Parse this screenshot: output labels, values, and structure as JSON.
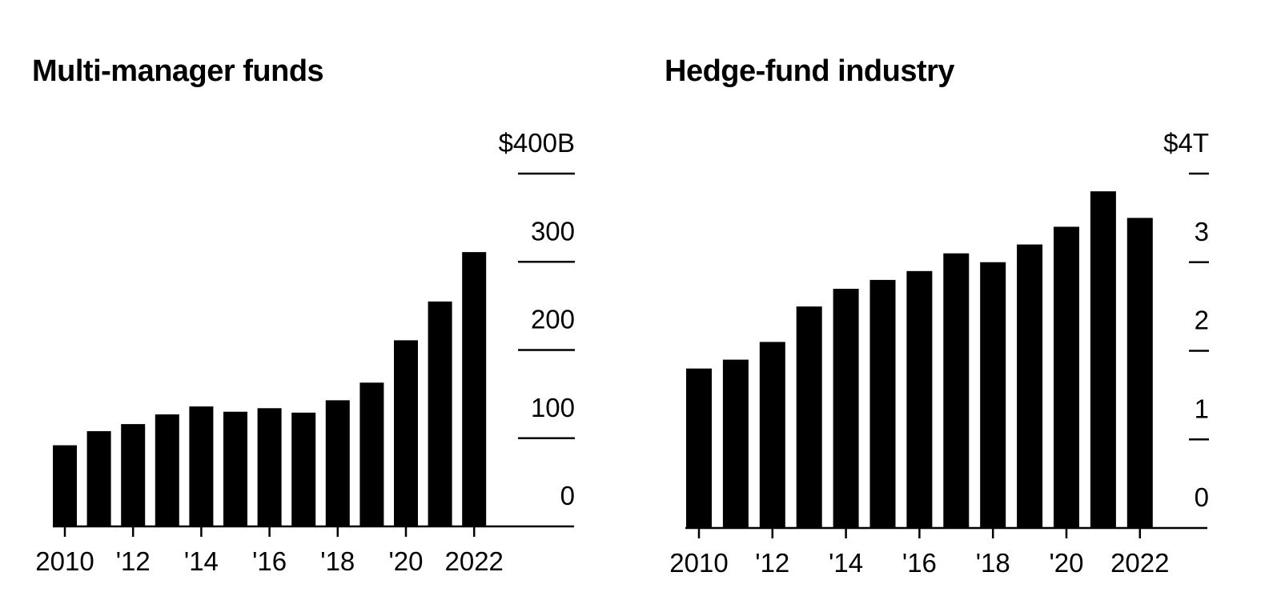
{
  "chart_data": [
    {
      "type": "bar",
      "title": "Multi-manager funds",
      "categories": [
        "2010",
        "2011",
        "2012",
        "2013",
        "2014",
        "2015",
        "2016",
        "2017",
        "2018",
        "2019",
        "2020",
        "2021",
        "2022"
      ],
      "x_tick_labels": [
        "2010",
        "'12",
        "'14",
        "'16",
        "'18",
        "'20",
        "2022"
      ],
      "values": [
        92,
        108,
        116,
        127,
        136,
        130,
        134,
        129,
        143,
        163,
        211,
        255,
        311
      ],
      "y_ticks": [
        0,
        100,
        200,
        300,
        400
      ],
      "y_tick_labels": [
        "0",
        "100",
        "200",
        "300",
        "$400B"
      ],
      "ylim": [
        0,
        400
      ],
      "xlabel": "",
      "ylabel": ""
    },
    {
      "type": "bar",
      "title": "Hedge-fund industry",
      "categories": [
        "2010",
        "2011",
        "2012",
        "2013",
        "2014",
        "2015",
        "2016",
        "2017",
        "2018",
        "2019",
        "2020",
        "2021",
        "2022"
      ],
      "x_tick_labels": [
        "2010",
        "'12",
        "'14",
        "'16",
        "'18",
        "'20",
        "2022"
      ],
      "values": [
        1.8,
        1.9,
        2.1,
        2.5,
        2.7,
        2.8,
        2.9,
        3.1,
        3.0,
        3.2,
        3.4,
        3.8,
        3.5
      ],
      "y_ticks": [
        0,
        1,
        2,
        3,
        4
      ],
      "y_tick_labels": [
        "0",
        "1",
        "2",
        "3",
        "$4T"
      ],
      "ylim": [
        0,
        4
      ],
      "xlabel": "",
      "ylabel": ""
    }
  ]
}
